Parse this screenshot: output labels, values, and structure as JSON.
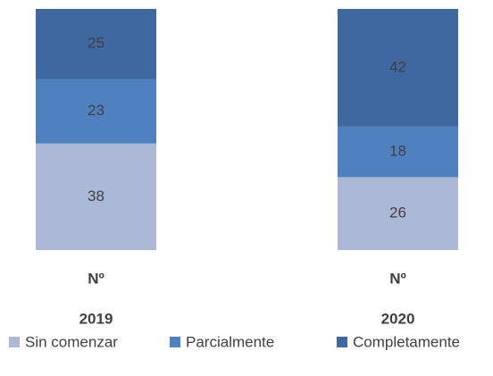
{
  "chart_data": {
    "type": "stacked_bar",
    "categories": [
      "Nº",
      "Nº"
    ],
    "groups": [
      "2019",
      "2020"
    ],
    "series": [
      {
        "name": "Sin comenzar",
        "color": "#abb9d7",
        "values": [
          38,
          26
        ]
      },
      {
        "name": "Parcialmente",
        "color": "#4f81c0",
        "values": [
          23,
          18
        ]
      },
      {
        "name": "Completamente",
        "color": "#3f68a0",
        "values": [
          25,
          42
        ]
      }
    ],
    "ylim": [
      0,
      86
    ],
    "legend": "bottom"
  }
}
